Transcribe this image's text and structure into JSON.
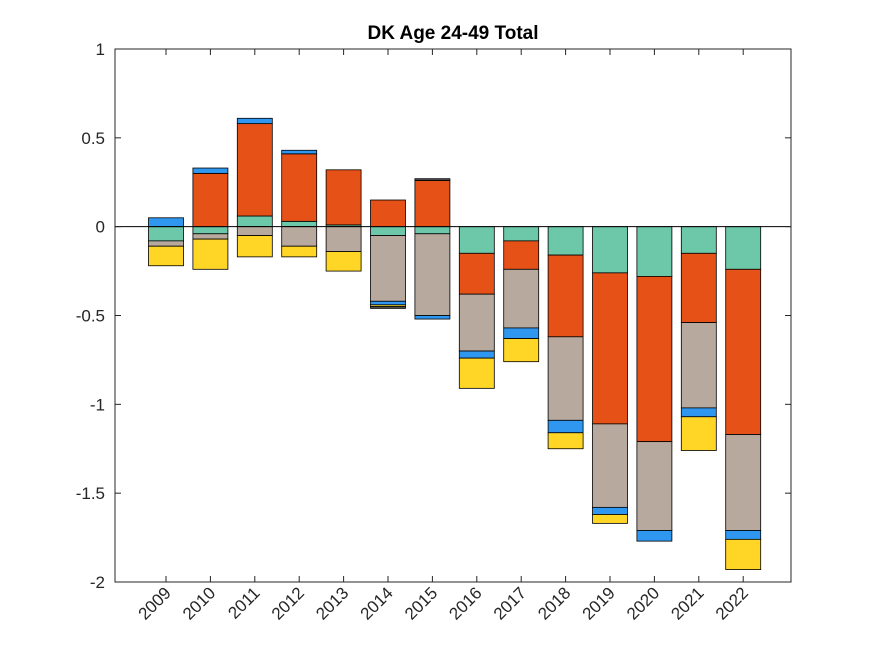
{
  "chart_data": {
    "type": "bar",
    "stacked": true,
    "title": "DK  Age 24-49  Total",
    "xlabel": "",
    "ylabel": "",
    "ylim": [
      -2,
      1
    ],
    "yticks": [
      -2,
      -1.5,
      -1,
      -0.5,
      0,
      0.5,
      1
    ],
    "ytick_labels": [
      "-2",
      "-1.5",
      "-1",
      "-0.5",
      "0",
      "0.5",
      "1"
    ],
    "categories": [
      "2009",
      "2010",
      "2011",
      "2012",
      "2013",
      "2014",
      "2015",
      "2016",
      "2017",
      "2018",
      "2019",
      "2020",
      "2021",
      "2022"
    ],
    "grid": false,
    "legend": "none",
    "series": [
      {
        "name": "teal",
        "color": "#6CC8A8",
        "values": [
          -0.08,
          -0.04,
          0.06,
          0.03,
          0.01,
          -0.05,
          -0.04,
          -0.15,
          -0.08,
          -0.16,
          -0.26,
          -0.28,
          -0.15,
          -0.24
        ]
      },
      {
        "name": "orange",
        "color": "#E65118",
        "values": [
          0.0,
          0.3,
          0.52,
          0.38,
          0.31,
          0.15,
          0.26,
          -0.23,
          -0.16,
          -0.46,
          -0.85,
          -0.93,
          -0.39,
          -0.93
        ]
      },
      {
        "name": "taupe",
        "color": "#B8A99E",
        "values": [
          -0.03,
          -0.03,
          -0.05,
          -0.11,
          -0.14,
          -0.37,
          -0.46,
          -0.32,
          -0.33,
          -0.47,
          -0.47,
          -0.5,
          -0.48,
          -0.54
        ]
      },
      {
        "name": "blue",
        "color": "#2F97EF",
        "values": [
          0.05,
          0.03,
          0.03,
          0.02,
          0.0,
          -0.02,
          -0.02,
          -0.04,
          -0.06,
          -0.07,
          -0.04,
          -0.06,
          -0.05,
          -0.05
        ]
      },
      {
        "name": "yellow",
        "color": "#FFD626",
        "values": [
          -0.11,
          -0.17,
          -0.12,
          -0.06,
          -0.11,
          -0.01,
          0.0,
          -0.17,
          -0.13,
          -0.09,
          -0.05,
          0.0,
          -0.19,
          -0.17
        ]
      },
      {
        "name": "dark",
        "color": "#4D4D4D",
        "values": [
          0.0,
          0.0,
          0.0,
          0.0,
          0.0,
          -0.01,
          0.01,
          0.0,
          0.0,
          0.0,
          0.0,
          0.0,
          0.0,
          0.0
        ]
      }
    ]
  }
}
